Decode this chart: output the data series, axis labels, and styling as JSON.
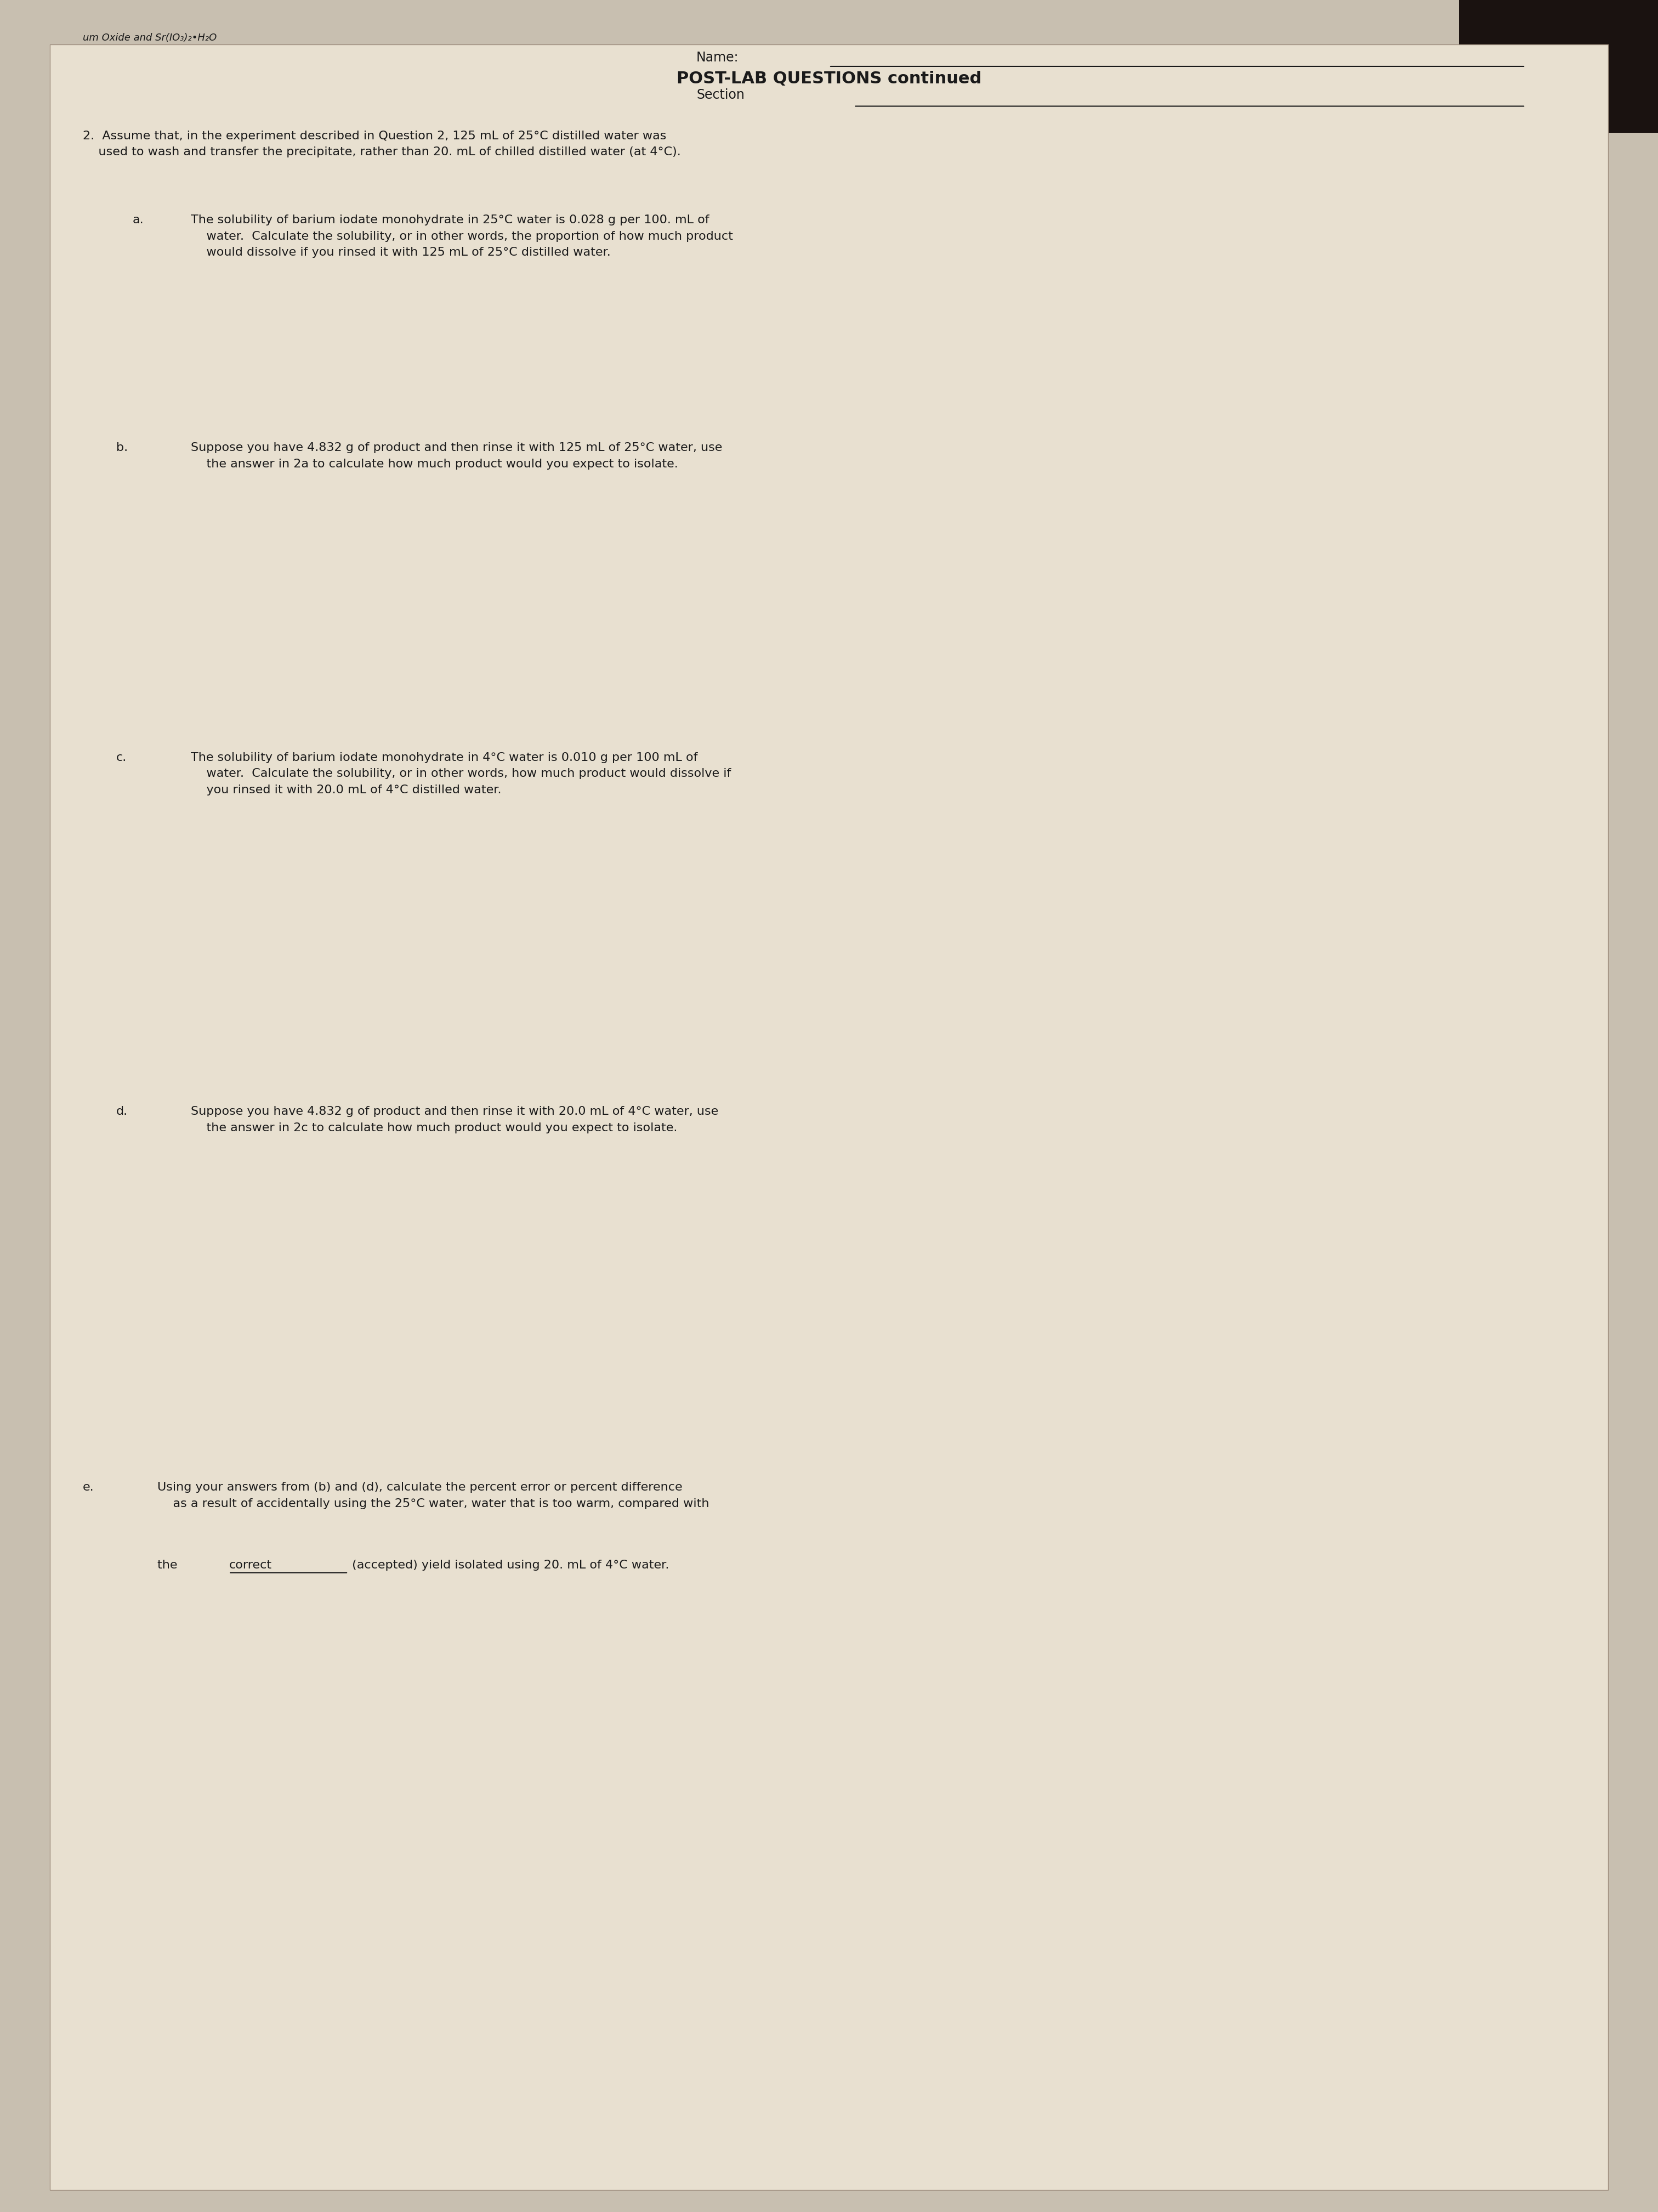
{
  "background_color": "#c8bfb0",
  "paper_color": "#e8e0d0",
  "header_left": "um Oxide and Sr(IO₃)₂•H₂O",
  "name_label": "Name:",
  "section_label": "Section",
  "title": "POST-LAB QUESTIONS continued",
  "text_color": "#1a1a1a",
  "font_size_title": 22,
  "font_size_body": 16,
  "font_size_header": 13,
  "dark_corner_color": "#1a1210"
}
